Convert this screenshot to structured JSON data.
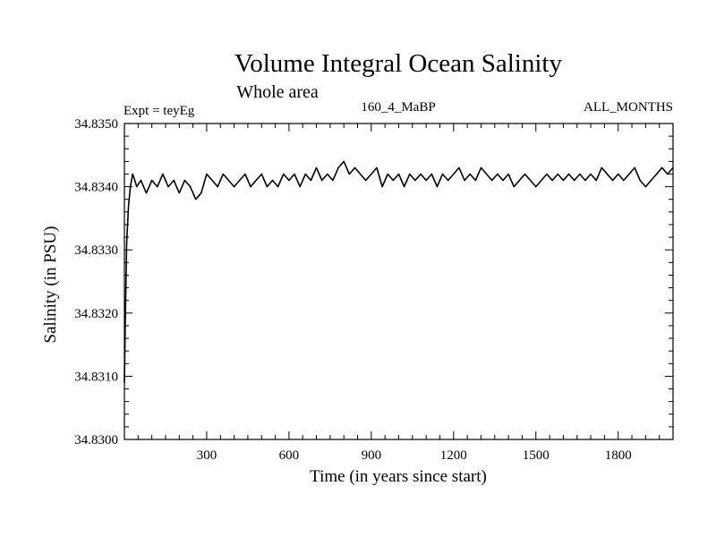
{
  "chart_data": {
    "type": "line",
    "title": "Volume Integral Ocean Salinity",
    "subtitle": "Whole area",
    "annotations": {
      "left": "Expt = teyEg",
      "center": "160_4_MaBP",
      "right": "ALL_MONTHS"
    },
    "xlabel": "Time (in years since start)",
    "ylabel": "Salinity (in PSU)",
    "xlim": [
      0,
      2000
    ],
    "ylim": [
      34.83,
      34.835
    ],
    "x_ticks": [
      300,
      600,
      900,
      1200,
      1500,
      1800
    ],
    "x_tick_labels": [
      "300",
      "600",
      "900",
      "1200",
      "1500",
      "1800"
    ],
    "y_ticks": [
      34.83,
      34.831,
      34.832,
      34.833,
      34.834,
      34.835
    ],
    "y_tick_labels": [
      "34.8300",
      "34.8310",
      "34.8320",
      "34.8330",
      "34.8340",
      "34.8350"
    ],
    "grid": false,
    "series": [
      {
        "name": "Salinity",
        "color": "#000000",
        "x": [
          0,
          3,
          8,
          15,
          22,
          30,
          38,
          45,
          60,
          80,
          100,
          120,
          140,
          160,
          180,
          200,
          220,
          240,
          260,
          280,
          300,
          320,
          340,
          360,
          380,
          400,
          420,
          440,
          460,
          480,
          500,
          520,
          540,
          560,
          580,
          600,
          620,
          640,
          660,
          680,
          700,
          720,
          740,
          760,
          780,
          800,
          820,
          840,
          860,
          880,
          900,
          920,
          940,
          960,
          980,
          1000,
          1020,
          1040,
          1060,
          1080,
          1100,
          1120,
          1140,
          1160,
          1180,
          1200,
          1220,
          1240,
          1260,
          1280,
          1300,
          1320,
          1340,
          1360,
          1380,
          1400,
          1420,
          1440,
          1460,
          1480,
          1500,
          1520,
          1540,
          1560,
          1580,
          1600,
          1620,
          1640,
          1660,
          1680,
          1700,
          1720,
          1740,
          1760,
          1780,
          1800,
          1820,
          1840,
          1860,
          1880,
          1900,
          1920,
          1940,
          1960,
          1980,
          2000
        ],
        "values": [
          34.8309,
          34.8318,
          34.8331,
          34.8337,
          34.834,
          34.8342,
          34.8341,
          34.834,
          34.8341,
          34.8339,
          34.8341,
          34.834,
          34.8342,
          34.834,
          34.8341,
          34.8339,
          34.8341,
          34.834,
          34.8338,
          34.8339,
          34.8342,
          34.8341,
          34.834,
          34.8342,
          34.8341,
          34.834,
          34.8341,
          34.8342,
          34.834,
          34.8341,
          34.8342,
          34.834,
          34.8341,
          34.834,
          34.8342,
          34.8341,
          34.8342,
          34.834,
          34.8342,
          34.8341,
          34.8343,
          34.8341,
          34.8342,
          34.8341,
          34.8343,
          34.8344,
          34.8342,
          34.8343,
          34.8342,
          34.8341,
          34.8342,
          34.8343,
          34.834,
          34.8342,
          34.8341,
          34.8342,
          34.834,
          34.8342,
          34.8341,
          34.8342,
          34.8341,
          34.8342,
          34.834,
          34.8342,
          34.8341,
          34.8342,
          34.8343,
          34.8341,
          34.8342,
          34.8341,
          34.8343,
          34.8342,
          34.8341,
          34.8342,
          34.8341,
          34.8342,
          34.834,
          34.8341,
          34.8342,
          34.8341,
          34.834,
          34.8341,
          34.8342,
          34.8341,
          34.8342,
          34.8341,
          34.8342,
          34.8341,
          34.8342,
          34.8341,
          34.8342,
          34.8341,
          34.8343,
          34.8342,
          34.8341,
          34.8342,
          34.8341,
          34.8342,
          34.8343,
          34.8341,
          34.834,
          34.8341,
          34.8342,
          34.8343,
          34.8342,
          34.8343
        ]
      }
    ]
  }
}
